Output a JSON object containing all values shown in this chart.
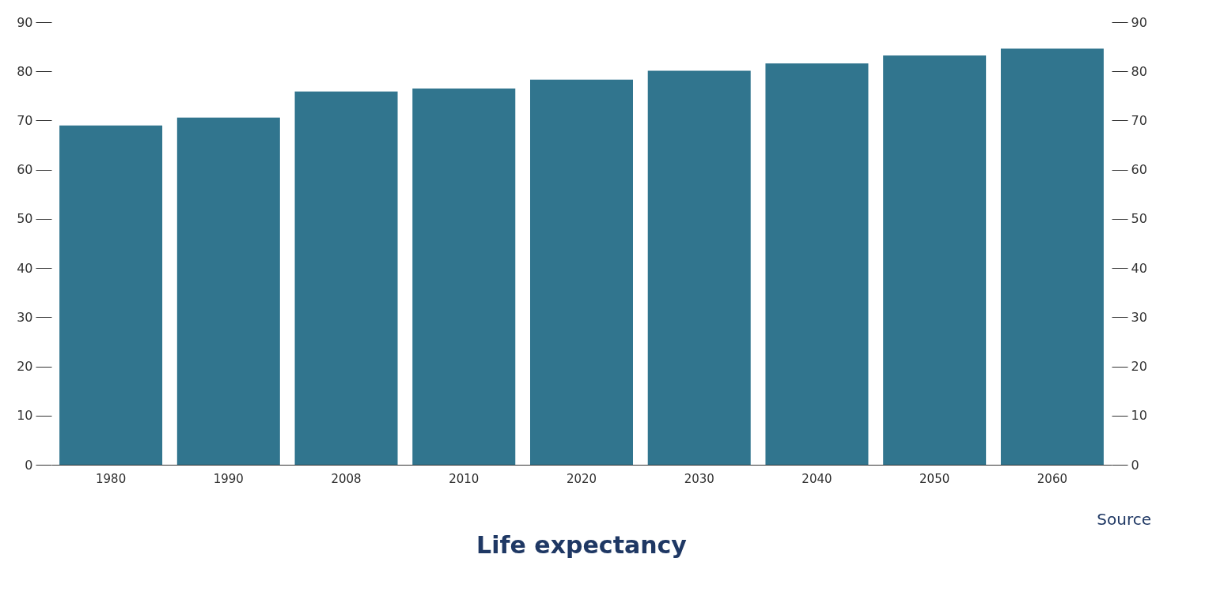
{
  "chart_data": {
    "type": "bar",
    "title": "Life expectancy",
    "categories": [
      "1980",
      "1990",
      "2008",
      "2010",
      "2020",
      "2030",
      "2040",
      "2050",
      "2060"
    ],
    "values": [
      69.0,
      70.6,
      75.9,
      76.5,
      78.3,
      80.1,
      81.6,
      83.2,
      84.6
    ],
    "color": "#31758e",
    "ylim": [
      0,
      90
    ],
    "yticks": [
      0,
      10,
      20,
      30,
      40,
      50,
      60,
      70,
      80,
      90
    ],
    "y2lim": [
      0,
      90
    ],
    "y2ticks": [
      0,
      10,
      20,
      30,
      40,
      50,
      60,
      70,
      80,
      90
    ],
    "grid": false,
    "annotations": [
      "Source"
    ]
  }
}
